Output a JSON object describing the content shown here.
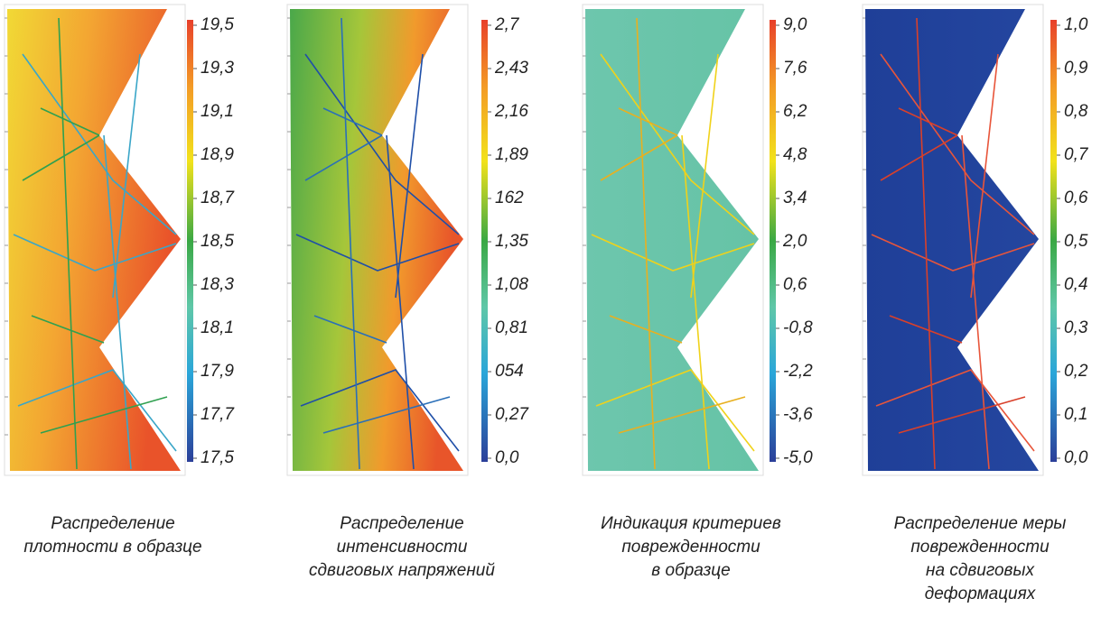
{
  "panels": [
    {
      "ticks": [
        "19,5",
        "19,3",
        "19,1",
        "18,9",
        "18,7",
        "18,5",
        "18,3",
        "18,1",
        "17,9",
        "17,7",
        "17,5"
      ],
      "caption": [
        "Распределение",
        "плотности в образце"
      ]
    },
    {
      "ticks": [
        "2,7",
        "2,43",
        "2,16",
        "1,89",
        "162",
        "1,35",
        "1,08",
        "0,81",
        "054",
        "0,27",
        "0,0"
      ],
      "caption": [
        "Распределение",
        "интенсивности",
        "сдвиговых напряжений"
      ]
    },
    {
      "ticks": [
        "9,0",
        "7,6",
        "6,2",
        "4,8",
        "3,4",
        "2,0",
        "0,6",
        "-0,8",
        "-2,2",
        "-3,6",
        "-5,0"
      ],
      "caption": [
        "Индикация критериев",
        "поврежденности",
        "в образце"
      ]
    },
    {
      "ticks": [
        "1,0",
        "0,9",
        "0,8",
        "0,7",
        "0,6",
        "0,5",
        "0,4",
        "0,3",
        "0,2",
        "0,1",
        "0,0"
      ],
      "caption": [
        "Распределение меры",
        "поврежденности",
        "на сдвиговых",
        "деформациях"
      ]
    }
  ]
}
